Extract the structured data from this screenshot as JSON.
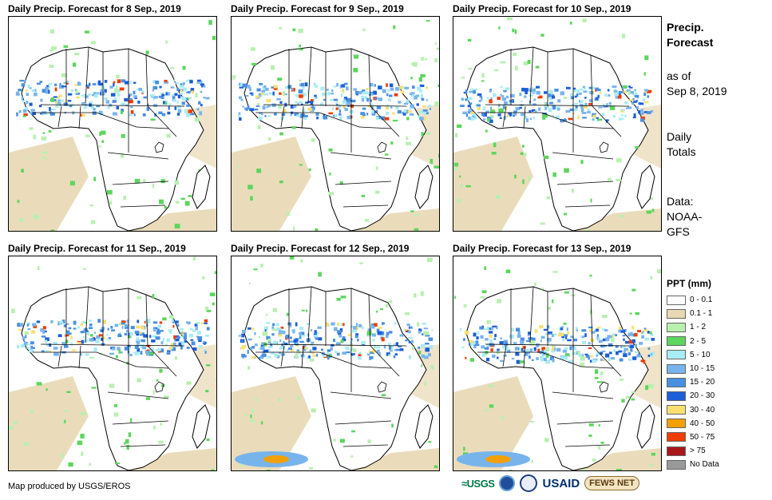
{
  "maps": [
    {
      "title": "Daily Precip. Forecast for 8 Sep., 2019",
      "day": 8
    },
    {
      "title": "Daily Precip. Forecast for 9 Sep., 2019",
      "day": 9
    },
    {
      "title": "Daily Precip. Forecast for 10 Sep., 2019",
      "day": 10
    },
    {
      "title": "Daily Precip. Forecast for 11 Sep., 2019",
      "day": 11
    },
    {
      "title": "Daily Precip. Forecast for 12 Sep., 2019",
      "day": 12
    },
    {
      "title": "Daily Precip. Forecast for 13 Sep., 2019",
      "day": 13
    }
  ],
  "sidebar": {
    "heading_line1": "Precip.",
    "heading_line2": "Forecast",
    "asof_line1": "as of",
    "asof_line2": "Sep 8, 2019",
    "totals_line1": "Daily",
    "totals_line2": "Totals",
    "data_line1": "Data:",
    "data_line2": "NOAA-",
    "data_line3": "GFS"
  },
  "legend": {
    "title": "PPT (mm)",
    "items": [
      {
        "label": "0 - 0.1",
        "color": "#ffffff"
      },
      {
        "label": "0.1 - 1",
        "color": "#e8d8b4"
      },
      {
        "label": "1 - 2",
        "color": "#b8f0b0"
      },
      {
        "label": "2 - 5",
        "color": "#5cd65c"
      },
      {
        "label": "5 - 10",
        "color": "#a8ecf4"
      },
      {
        "label": "10 - 15",
        "color": "#78b4ec"
      },
      {
        "label": "15 - 20",
        "color": "#4a90e0"
      },
      {
        "label": "20 - 30",
        "color": "#1c5ed8"
      },
      {
        "label": "30 - 40",
        "color": "#f8e070"
      },
      {
        "label": "40 - 50",
        "color": "#f4a000"
      },
      {
        "label": "50 - 75",
        "color": "#f03c00"
      },
      {
        "label": "> 75",
        "color": "#a81818"
      },
      {
        "label": "No Data",
        "color": "#999999"
      }
    ]
  },
  "footer": {
    "credit": "Map produced by USGS/EROS",
    "logo_usgs": "≈USGS",
    "logo_usaid": "USAID",
    "logo_fews": "FEWS NET"
  }
}
